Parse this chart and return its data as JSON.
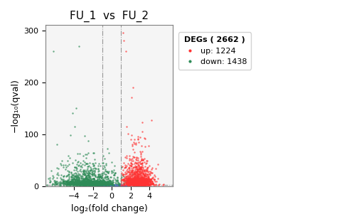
{
  "title": "FU_1  vs  FU_2",
  "xlabel": "log₂(fold change)",
  "ylabel": "−log₁₀(qval)",
  "xlim": [
    -7,
    6.5
  ],
  "ylim": [
    0,
    310
  ],
  "xticks": [
    -4,
    -2,
    0,
    2,
    4
  ],
  "yticks": [
    0,
    100,
    200,
    300
  ],
  "hline_y": 2.3,
  "vline_x1": -1,
  "vline_x2": 1,
  "color_up": "#FF3333",
  "color_down": "#2E8B57",
  "color_ns": "#4169E1",
  "n_up": 1224,
  "n_down": 1438,
  "n_total": 2662,
  "legend_title": "DEGs ( 2662 )",
  "legend_up": "up: 1224",
  "legend_down": "down: 1438",
  "seed": 42,
  "bg_color": "#f5f5f5"
}
